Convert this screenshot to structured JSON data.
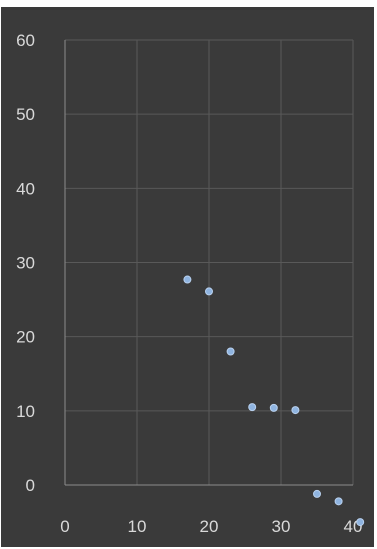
{
  "chart_data": {
    "type": "scatter",
    "title": "",
    "xlabel": "",
    "ylabel": "",
    "xlim": [
      0,
      40
    ],
    "ylim": [
      0,
      60
    ],
    "x_ticks": [
      0,
      10,
      20,
      30,
      40
    ],
    "y_ticks": [
      0,
      10,
      20,
      30,
      40,
      50,
      60
    ],
    "grid": true,
    "legend": "none",
    "point_color": "#8fb4e0",
    "background_color": "#3a3a3a",
    "series": [
      {
        "x": [
          17,
          20,
          23,
          26,
          29,
          32,
          35,
          38,
          41
        ],
        "y": [
          27.7,
          26.1,
          18.0,
          10.5,
          10.4,
          10.1,
          -1.2,
          -2.2,
          -5.0
        ]
      }
    ]
  }
}
